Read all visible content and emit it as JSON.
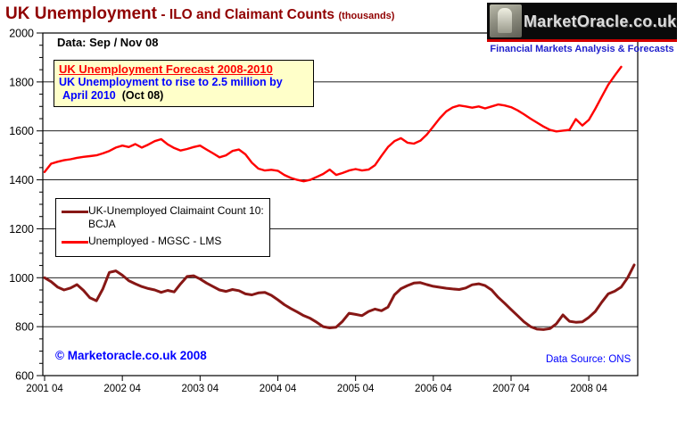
{
  "header": {
    "title_main": "UK Unemployment",
    "title_rest": "- ILO and Claimant Counts",
    "title_unit": "(thousands)"
  },
  "logo": {
    "brand": "MarketOracle.co.uk",
    "tagline": "Financial Markets Analysis & Forecasts",
    "statue_icon": "oracle-statue-icon",
    "stripe_color": "#d40000",
    "tagline_color": "#2121cc"
  },
  "annotations": {
    "data_label": "Data: Sep / Nov 08",
    "forecast_title": "UK Unemployment Forecast 2008-2010",
    "forecast_line1": "UK Unemployment to rise to 2.5 million by",
    "forecast_line2": "April 2010",
    "forecast_date": "(Oct 08)",
    "copyright": "© Marketoracle.co.uk  2008",
    "data_source": "Data Source: ONS"
  },
  "legend": {
    "items": [
      {
        "label": "UK-Unemployed Claimaint Count 10: BCJA",
        "color": "#871715"
      },
      {
        "label": "Unemployed - MGSC - LMS",
        "color": "#ff0000"
      }
    ]
  },
  "colors": {
    "title": "#900000",
    "forecast_title": "#ff0000",
    "annotation_blue": "#0000ff",
    "claimant_line": "#871715",
    "ilo_line": "#ff0000",
    "axis": "#000000",
    "background": "#ffffff",
    "forecast_box_bg": "#ffffc9"
  },
  "chart_data": {
    "type": "line",
    "title": "UK Unemployment - ILO and Claimant Counts (thousands)",
    "xlabel": "",
    "ylabel": "",
    "ylim": [
      600,
      2000
    ],
    "y_tick_step": 200,
    "y_minor_tick_step": 50,
    "grid": "horizontal-major",
    "legend_position": "inside-left",
    "x_start": "2001-04",
    "x_frequency": "monthly",
    "x_points": 92,
    "x_tick_labels": [
      "2001 04",
      "2002 04",
      "2003 04",
      "2004 04",
      "2005 04",
      "2006 04",
      "2007 04",
      "2008 04"
    ],
    "x_tick_month_indices": [
      0,
      12,
      24,
      36,
      48,
      60,
      72,
      84
    ],
    "series": [
      {
        "id": "claimant",
        "name": "UK-Unemployed Claimaint Count 10: BCJA",
        "color": "#871715",
        "line_width": 3,
        "last_month": "2008-11",
        "values": [
          1000,
          984,
          962,
          950,
          958,
          972,
          948,
          918,
          906,
          955,
          1022,
          1028,
          1010,
          988,
          975,
          964,
          956,
          950,
          940,
          948,
          942,
          975,
          1005,
          1008,
          995,
          978,
          964,
          950,
          944,
          952,
          947,
          934,
          930,
          938,
          940,
          928,
          910,
          890,
          874,
          860,
          845,
          834,
          818,
          800,
          795,
          798,
          822,
          855,
          850,
          845,
          862,
          872,
          865,
          880,
          930,
          955,
          968,
          978,
          980,
          972,
          965,
          961,
          957,
          954,
          952,
          958,
          971,
          975,
          968,
          950,
          920,
          896,
          870,
          845,
          820,
          800,
          790,
          788,
          792,
          812,
          848,
          822,
          818,
          820,
          838,
          862,
          900,
          934,
          945,
          962,
          1000,
          1052
        ]
      },
      {
        "id": "ilo",
        "name": "Unemployed - MGSC - LMS",
        "color": "#ff0000",
        "line_width": 2.4,
        "last_month": "2008-09",
        "values": [
          1432,
          1466,
          1474,
          1480,
          1484,
          1490,
          1494,
          1497,
          1500,
          1508,
          1518,
          1532,
          1540,
          1534,
          1546,
          1532,
          1544,
          1558,
          1566,
          1545,
          1530,
          1520,
          1526,
          1534,
          1540,
          1524,
          1508,
          1492,
          1500,
          1518,
          1524,
          1504,
          1470,
          1446,
          1438,
          1441,
          1437,
          1420,
          1408,
          1400,
          1394,
          1400,
          1412,
          1424,
          1442,
          1420,
          1428,
          1438,
          1444,
          1438,
          1442,
          1460,
          1498,
          1534,
          1558,
          1570,
          1552,
          1548,
          1560,
          1585,
          1618,
          1652,
          1680,
          1696,
          1704,
          1700,
          1695,
          1700,
          1692,
          1700,
          1708,
          1704,
          1697,
          1684,
          1668,
          1650,
          1634,
          1618,
          1604,
          1598,
          1601,
          1604,
          1648,
          1622,
          1645,
          1690,
          1740,
          1788,
          1826,
          1862,
          null,
          null
        ]
      }
    ]
  }
}
